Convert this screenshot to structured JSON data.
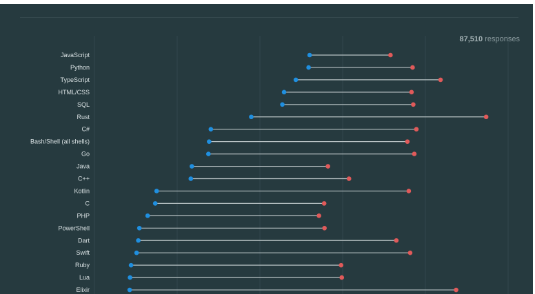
{
  "header": {
    "responses_count": "87,510",
    "responses_label": "responses"
  },
  "colors": {
    "background": "#263a3f",
    "start_point": "#1f8fe0",
    "end_point": "#e05a5a",
    "connector": "#b9c3c5",
    "gridline": "#32474c"
  },
  "chart_data": {
    "type": "dumbbell",
    "title": "",
    "xlabel": "",
    "ylabel": "",
    "xlim": [
      0,
      100
    ],
    "grid": true,
    "categories": [
      "JavaScript",
      "Python",
      "TypeScript",
      "HTML/CSS",
      "SQL",
      "Rust",
      "C#",
      "Bash/Shell (all shells)",
      "Go",
      "Java",
      "C++",
      "Kotlin",
      "C",
      "PHP",
      "PowerShell",
      "Dart",
      "Swift",
      "Ruby",
      "Lua",
      "Elixir"
    ],
    "series": [
      {
        "values": [
          62.3,
          62.0,
          58.3,
          54.9,
          54.4,
          45.4,
          33.7,
          33.2,
          33.0,
          28.2,
          27.9,
          18.0,
          17.6,
          15.4,
          13.0,
          12.7,
          12.2,
          10.6,
          10.3,
          10.2
        ]
      },
      {
        "values": [
          85.7,
          92.1,
          100.2,
          91.8,
          92.3,
          113.4,
          93.2,
          90.6,
          92.6,
          67.6,
          73.7,
          91.0,
          66.5,
          65.0,
          66.6,
          87.4,
          91.4,
          71.4,
          71.6,
          104.7
        ]
      }
    ]
  }
}
